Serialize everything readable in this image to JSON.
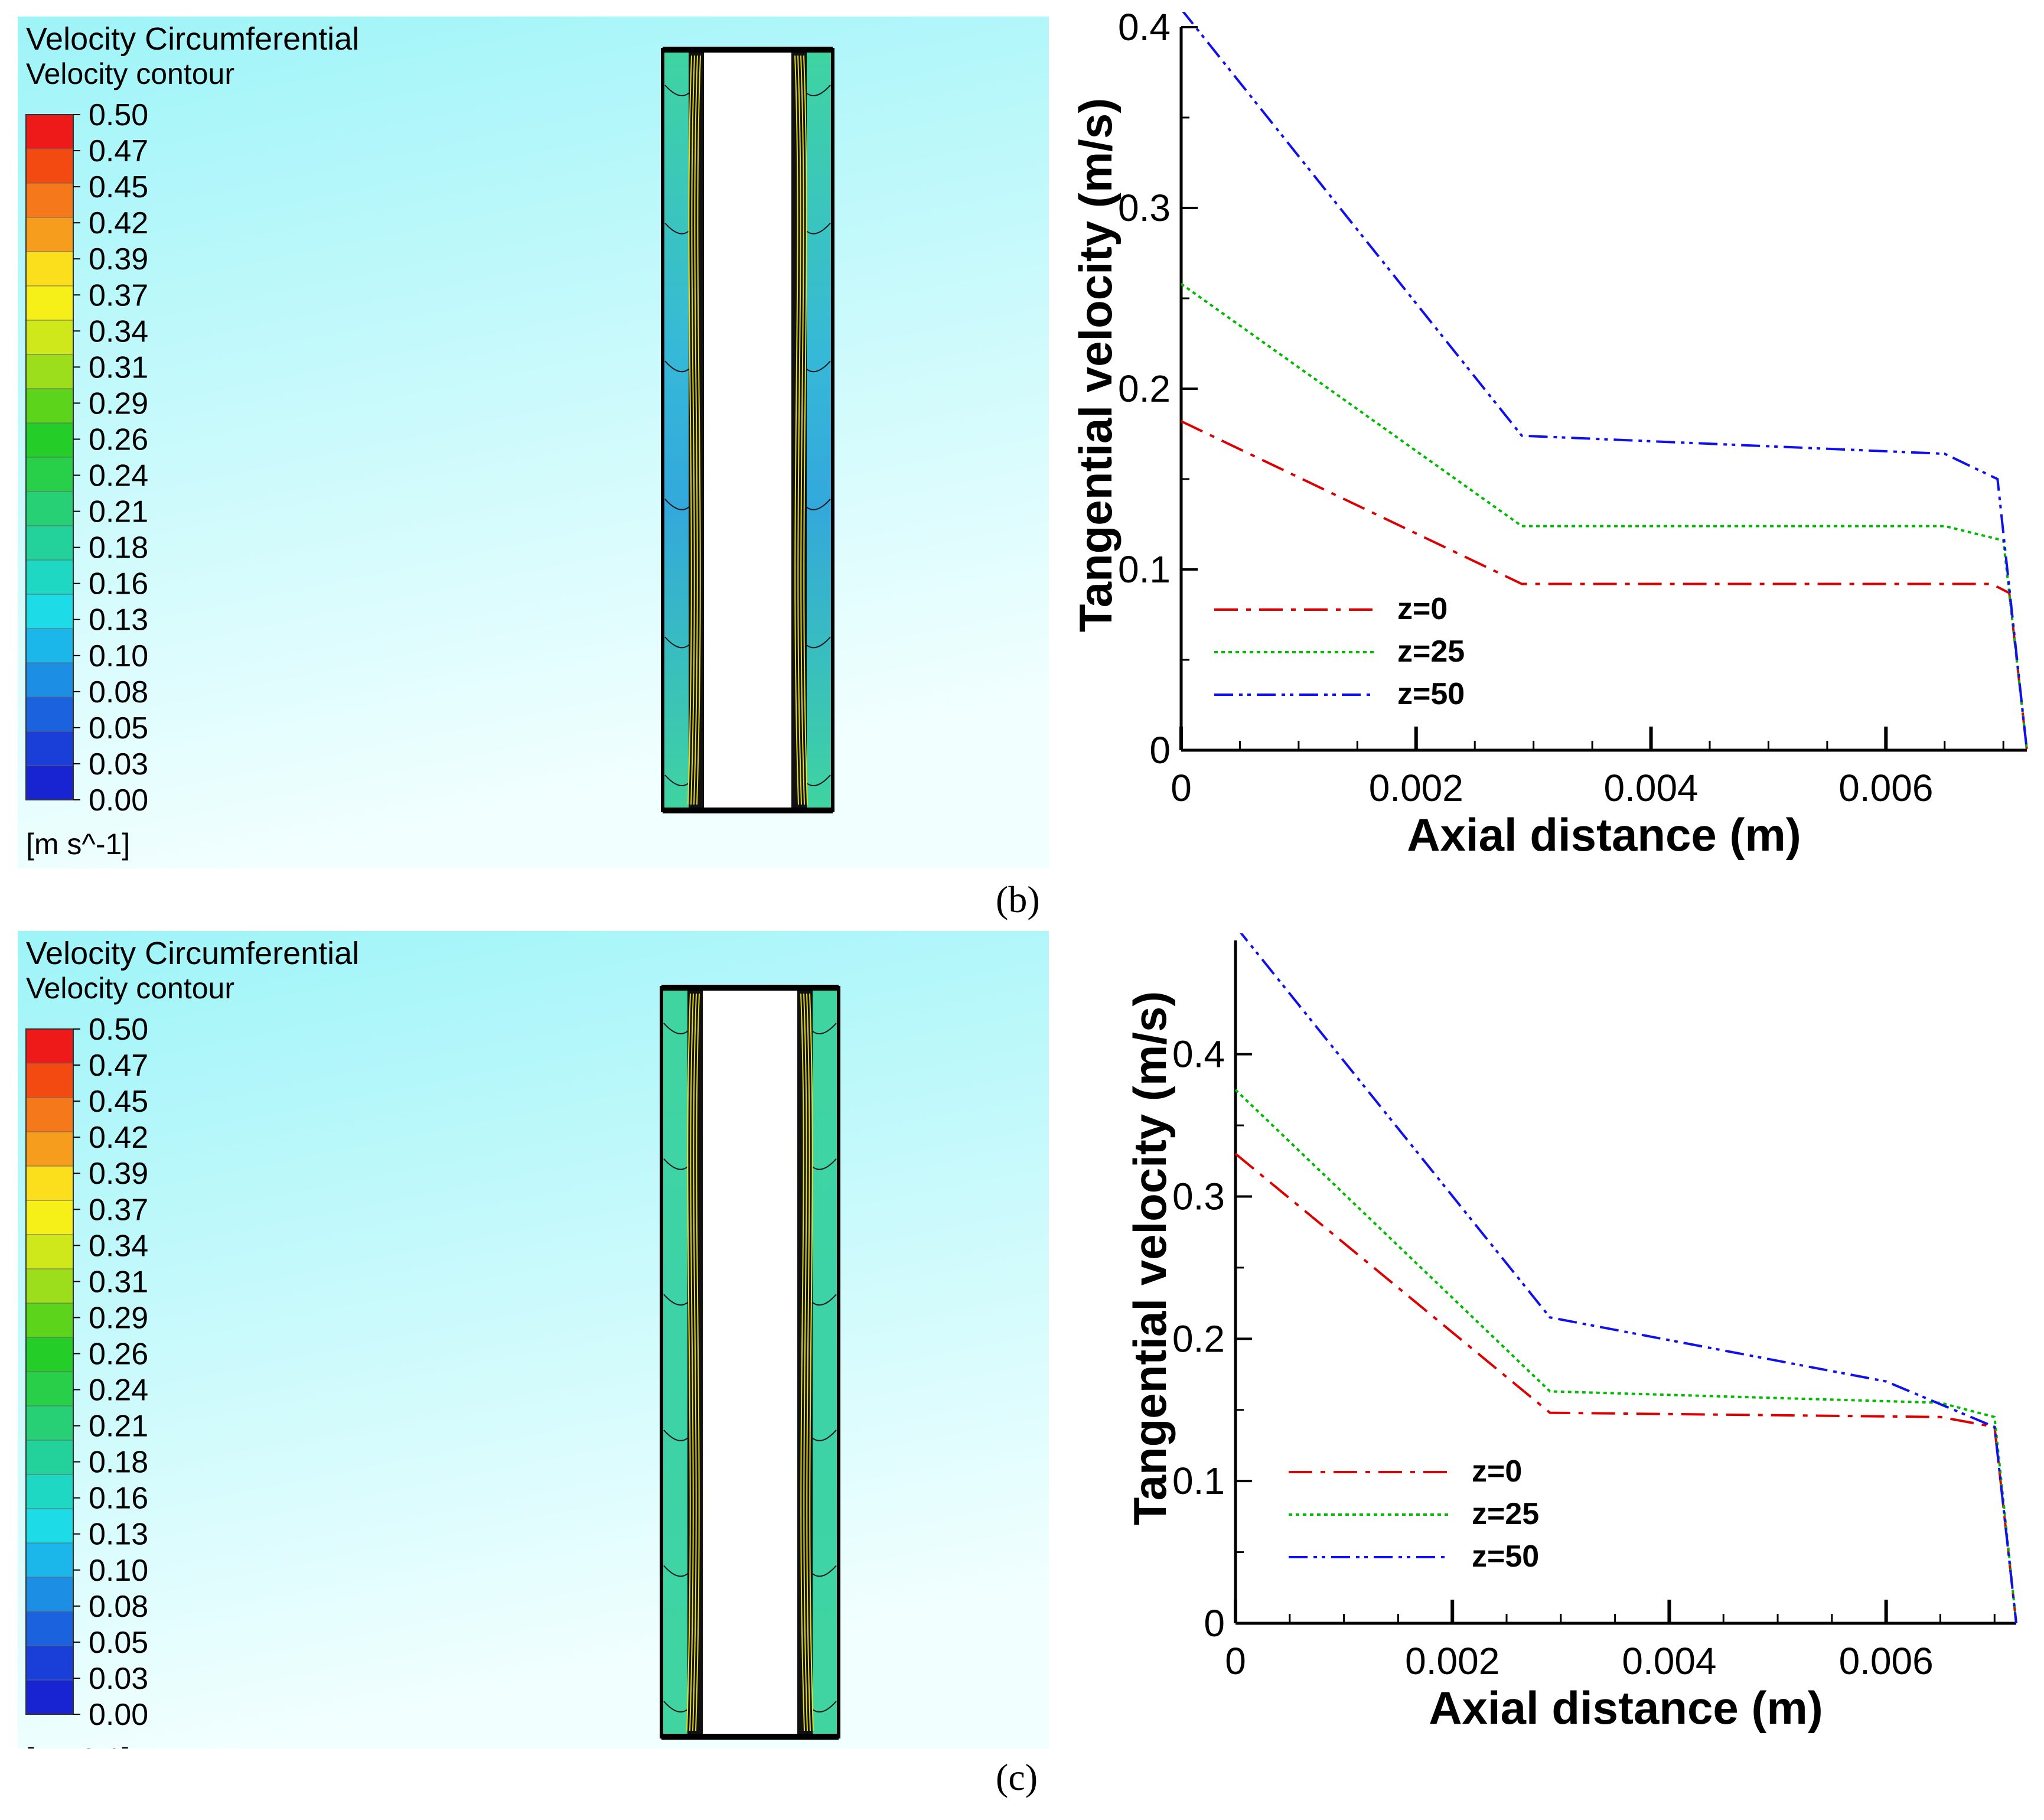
{
  "colors": {
    "bg_top": "#9ef4f8",
    "bg_bottom": "#f2ffff",
    "z0": "#dd0000",
    "z25": "#00bb00",
    "z50": "#1010ee"
  },
  "colorbar": {
    "title": "Velocity Circumferential",
    "subtitle": "Velocity contour",
    "unit": "[m s^-1]",
    "ticks": [
      "0.50",
      "0.47",
      "0.45",
      "0.42",
      "0.39",
      "0.37",
      "0.34",
      "0.31",
      "0.29",
      "0.26",
      "0.24",
      "0.21",
      "0.18",
      "0.16",
      "0.13",
      "0.10",
      "0.08",
      "0.05",
      "0.03",
      "0.00"
    ],
    "swatches": [
      "#ee1a1a",
      "#f24a10",
      "#f5781a",
      "#f79d1e",
      "#fbdf1c",
      "#f6ef18",
      "#cfe81c",
      "#9cdd1c",
      "#5dd41c",
      "#25cd28",
      "#28d04a",
      "#27d075",
      "#22d29a",
      "#1ed8c4",
      "#1edbe8",
      "#1cb7ea",
      "#1c8ee4",
      "#1b63de",
      "#1a3fd8",
      "#1824d2"
    ]
  },
  "labels": {
    "b": "(b)",
    "c": "(c)"
  },
  "chart_data": [
    {
      "type": "line",
      "panel": "b",
      "xlabel": "Axial distance (m)",
      "ylabel": "Tangential velocity (m/s)",
      "xlim": [
        0,
        0.0072
      ],
      "ylim": [
        0,
        0.4
      ],
      "x_ticks": [
        0,
        0.002,
        0.004,
        0.006
      ],
      "x_tick_labels": [
        "0",
        "0.002",
        "0.004",
        "0.006"
      ],
      "y_ticks": [
        0,
        0.1,
        0.2,
        0.3,
        0.4
      ],
      "y_tick_labels": [
        "0",
        "0.1",
        "0.2",
        "0.3",
        "0.4"
      ],
      "legend_position": "bottom-left",
      "series": [
        {
          "name": "z=0",
          "x": [
            0,
            0.0029,
            0.0069,
            0.00705,
            0.0072
          ],
          "y": [
            0.182,
            0.092,
            0.092,
            0.087,
            0.0
          ]
        },
        {
          "name": "z=25",
          "x": [
            0,
            0.0029,
            0.0065,
            0.007,
            0.0072
          ],
          "y": [
            0.258,
            0.124,
            0.124,
            0.116,
            0.0
          ]
        },
        {
          "name": "z=50",
          "x": [
            0,
            0.0029,
            0.0065,
            0.00695,
            0.0072
          ],
          "y": [
            0.41,
            0.174,
            0.164,
            0.15,
            0.0
          ]
        }
      ]
    },
    {
      "type": "line",
      "panel": "c",
      "xlabel": "Axial distance (m)",
      "ylabel": "Tangential velocity (m/s)",
      "xlim": [
        0,
        0.0072
      ],
      "ylim": [
        0,
        0.48
      ],
      "x_ticks": [
        0,
        0.002,
        0.004,
        0.006
      ],
      "x_tick_labels": [
        "0",
        "0.002",
        "0.004",
        "0.006"
      ],
      "y_ticks": [
        0,
        0.1,
        0.2,
        0.3,
        0.4
      ],
      "y_tick_labels": [
        "0",
        "0.1",
        "0.2",
        "0.3",
        "0.4"
      ],
      "legend_position": "bottom-left",
      "series": [
        {
          "name": "z=0",
          "x": [
            0,
            0.0029,
            0.0065,
            0.007,
            0.0072
          ],
          "y": [
            0.33,
            0.148,
            0.145,
            0.138,
            0.0
          ]
        },
        {
          "name": "z=25",
          "x": [
            0,
            0.0029,
            0.0065,
            0.007,
            0.0072
          ],
          "y": [
            0.375,
            0.163,
            0.155,
            0.145,
            0.0
          ]
        },
        {
          "name": "z=50",
          "x": [
            0,
            0.0029,
            0.006,
            0.007,
            0.0072
          ],
          "y": [
            0.49,
            0.215,
            0.17,
            0.138,
            0.0
          ]
        }
      ]
    }
  ]
}
